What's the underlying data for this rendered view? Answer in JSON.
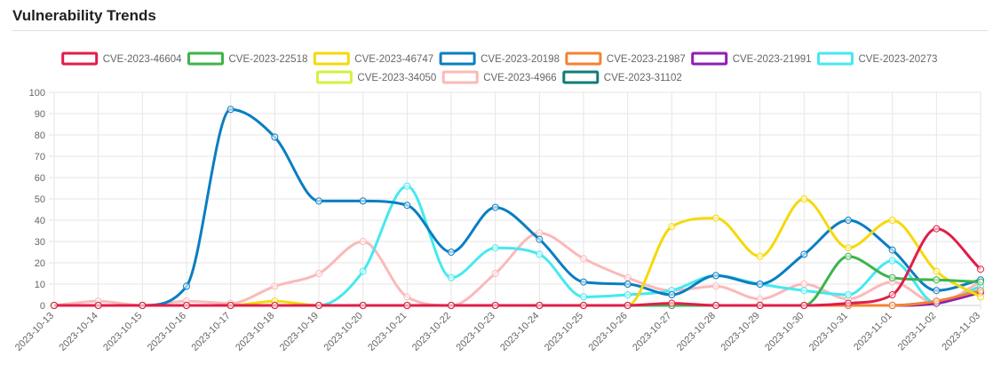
{
  "card": {
    "title": "Vulnerability Trends"
  },
  "chart_data": {
    "type": "line",
    "title": "",
    "xlabel": "",
    "ylabel": "",
    "ylim": [
      0,
      100
    ],
    "y_ticks": [
      0,
      10,
      20,
      30,
      40,
      50,
      60,
      70,
      80,
      90,
      100
    ],
    "grid": true,
    "legend_position": "top-center",
    "categories": [
      "2023-10-13",
      "2023-10-14",
      "2023-10-15",
      "2023-10-16",
      "2023-10-17",
      "2023-10-18",
      "2023-10-19",
      "2023-10-20",
      "2023-10-21",
      "2023-10-22",
      "2023-10-23",
      "2023-10-24",
      "2023-10-25",
      "2023-10-26",
      "2023-10-27",
      "2023-10-28",
      "2023-10-29",
      "2023-10-30",
      "2023-10-31",
      "2023-11-01",
      "2023-11-02",
      "2023-11-03"
    ],
    "series": [
      {
        "name": "CVE-2023-46604",
        "color": "#e11d48",
        "values": [
          0,
          0,
          0,
          0,
          0,
          0,
          0,
          0,
          0,
          0,
          0,
          0,
          0,
          0,
          1,
          0,
          0,
          0,
          1,
          5,
          36,
          17
        ]
      },
      {
        "name": "CVE-2023-22518",
        "color": "#3cb44b",
        "values": [
          0,
          0,
          0,
          0,
          0,
          0,
          0,
          0,
          0,
          0,
          0,
          0,
          0,
          0,
          0,
          0,
          0,
          0,
          23,
          13,
          12,
          11
        ]
      },
      {
        "name": "CVE-2023-46747",
        "color": "#f5d90a",
        "values": [
          0,
          0,
          0,
          0,
          0,
          2,
          0,
          0,
          0,
          0,
          0,
          0,
          0,
          0,
          37,
          41,
          23,
          50,
          27,
          40,
          16,
          4
        ]
      },
      {
        "name": "CVE-2023-20198",
        "color": "#0a7ec2",
        "values": [
          0,
          0,
          0,
          9,
          92,
          79,
          49,
          49,
          47,
          25,
          46,
          31,
          11,
          10,
          5,
          14,
          10,
          24,
          40,
          26,
          7,
          12
        ]
      },
      {
        "name": "CVE-2023-21987",
        "color": "#f58231",
        "values": [
          0,
          0,
          0,
          0,
          0,
          0,
          0,
          0,
          0,
          0,
          0,
          0,
          0,
          0,
          0,
          0,
          0,
          0,
          0,
          0,
          2,
          7
        ]
      },
      {
        "name": "CVE-2023-21991",
        "color": "#911eb4",
        "values": [
          0,
          0,
          0,
          0,
          0,
          0,
          0,
          0,
          0,
          0,
          0,
          0,
          0,
          0,
          0,
          0,
          0,
          0,
          0,
          0,
          1,
          6
        ]
      },
      {
        "name": "CVE-2023-20273",
        "color": "#46e8f0",
        "values": [
          0,
          0,
          0,
          0,
          0,
          0,
          0,
          16,
          56,
          13,
          27,
          24,
          4,
          5,
          7,
          14,
          10,
          7,
          5,
          21,
          1,
          9
        ]
      },
      {
        "name": "CVE-2023-34050",
        "color": "#d6f03e",
        "values": [
          0,
          0,
          0,
          0,
          0,
          0,
          0,
          0,
          0,
          0,
          0,
          0,
          0,
          0,
          0,
          0,
          0,
          0,
          0,
          0,
          1,
          7
        ]
      },
      {
        "name": "CVE-2023-4966",
        "color": "#fbb9b9",
        "values": [
          0,
          2,
          0,
          2,
          1,
          9,
          15,
          30,
          4,
          0,
          15,
          34,
          22,
          13,
          7,
          9,
          3,
          10,
          3,
          11,
          1,
          11
        ]
      },
      {
        "name": "CVE-2023-31102",
        "color": "#107c78",
        "values": [
          0,
          0,
          0,
          0,
          0,
          0,
          0,
          0,
          0,
          0,
          0,
          0,
          0,
          0,
          0,
          0,
          0,
          0,
          0,
          0,
          2,
          6
        ]
      }
    ]
  }
}
